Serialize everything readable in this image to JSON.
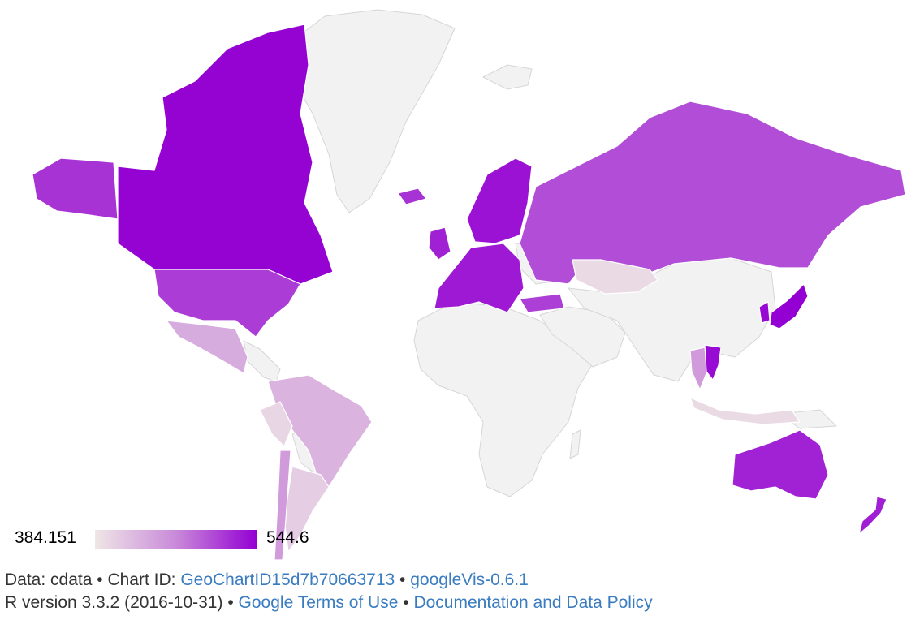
{
  "legend": {
    "min_label": "384.151",
    "max_label": "544.6",
    "min": 384.151,
    "max": 544.6,
    "color_min": "#efe6e6",
    "color_max": "#9400d3",
    "nodata_color": "#f2f2f2"
  },
  "footer": {
    "data_label": "Data: cdata",
    "chart_id_label": "Chart ID:",
    "chart_id_link": "GeoChartID15d7b70663713",
    "package_link": "googleVis-0.6.1",
    "r_version": "R version 3.3.2 (2016-10-31)",
    "terms_link": "Google Terms of Use",
    "policy_link": "Documentation and Data Policy",
    "separator": "•"
  },
  "regions": [
    {
      "id": "canada",
      "value": 543
    },
    {
      "id": "usa",
      "value": 510
    },
    {
      "id": "alaska",
      "value": 515
    },
    {
      "id": "mexico",
      "value": 436
    },
    {
      "id": "peru",
      "value": 398
    },
    {
      "id": "colombia-brazil",
      "value": 428
    },
    {
      "id": "argentina",
      "value": 405
    },
    {
      "id": "chile",
      "value": 450
    },
    {
      "id": "russia",
      "value": 500
    },
    {
      "id": "kazakhstan",
      "value": 395
    },
    {
      "id": "europe",
      "value": 530
    },
    {
      "id": "scandinavia",
      "value": 534
    },
    {
      "id": "iceland",
      "value": 515
    },
    {
      "id": "uk",
      "value": 526
    },
    {
      "id": "turkey",
      "value": 508
    },
    {
      "id": "japan",
      "value": 544.6
    },
    {
      "id": "korea",
      "value": 540
    },
    {
      "id": "vietnam",
      "value": 538
    },
    {
      "id": "thailand",
      "value": 450
    },
    {
      "id": "indonesia",
      "value": 395
    },
    {
      "id": "australia",
      "value": 525
    },
    {
      "id": "new-zealand",
      "value": 527
    }
  ]
}
